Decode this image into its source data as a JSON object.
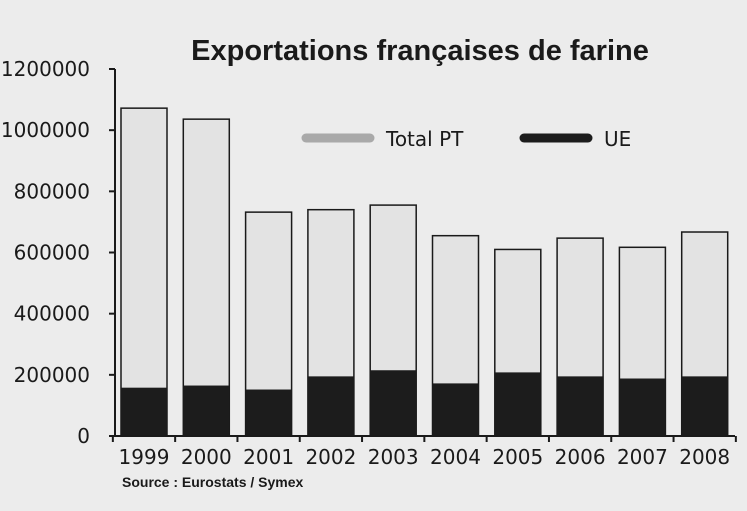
{
  "chart_data": {
    "type": "bar",
    "title": "Exportations françaises de farine",
    "xlabel": "",
    "ylabel": "",
    "ylim": [
      0,
      1200000
    ],
    "yticks": [
      "0",
      "200000",
      "400000",
      "600000",
      "800000",
      "1000000",
      "1200000"
    ],
    "ytick_values": [
      0,
      200000,
      400000,
      600000,
      800000,
      1000000,
      1200000
    ],
    "categories": [
      "1999",
      "2000",
      "2001",
      "2002",
      "2003",
      "2004",
      "2005",
      "2006",
      "2007",
      "2008"
    ],
    "series": [
      {
        "name": "Total PT",
        "values": [
          1072000,
          1036000,
          732000,
          740000,
          755000,
          655000,
          610000,
          647000,
          617000,
          667000
        ],
        "color": "#e3e3e3"
      },
      {
        "name": "UE",
        "values": [
          158000,
          165000,
          152000,
          195000,
          215000,
          172000,
          208000,
          195000,
          188000,
          195000
        ],
        "color": "#1c1c1c"
      }
    ],
    "legend_position": "top-right",
    "grid": false,
    "source": "Source : Eurostats / Symex"
  }
}
